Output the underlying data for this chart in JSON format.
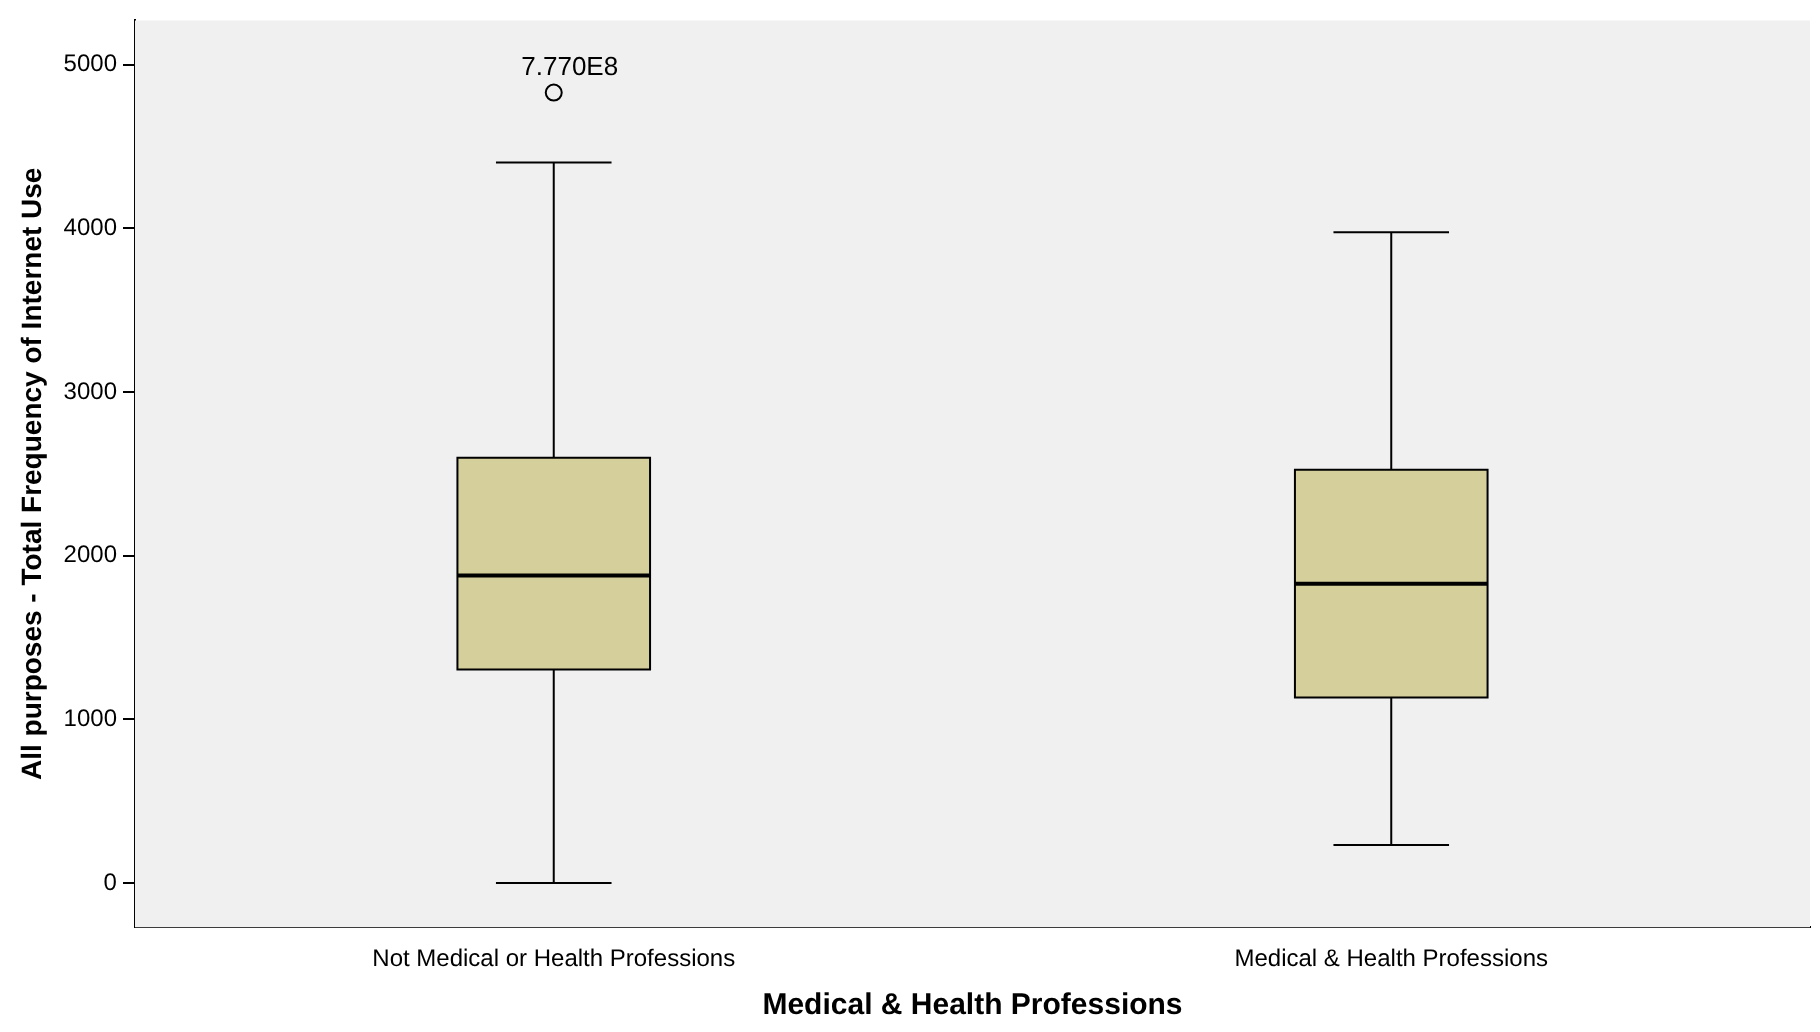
{
  "chart_data": {
    "type": "box",
    "xlabel": "Medical & Health Professions",
    "ylabel": "All purposes - Total Frequency of Internet Use",
    "categories": [
      "Not Medical or Health Professions",
      "Medical & Health Professions"
    ],
    "color": "#d4cf9b",
    "boxes": [
      {
        "low": 0,
        "q1": 1305,
        "median": 1878,
        "q3": 2598,
        "high": 4402,
        "outliers": [
          4829
        ]
      },
      {
        "low": 232,
        "q1": 1134,
        "median": 1829,
        "q3": 2524,
        "high": 3976
      }
    ],
    "annotations": [
      "7.770E8"
    ],
    "ylim": [
      -270,
      5270
    ],
    "yticks": [
      0,
      1000,
      2000,
      3000,
      4000,
      5000
    ],
    "grid": false,
    "legend": false
  }
}
